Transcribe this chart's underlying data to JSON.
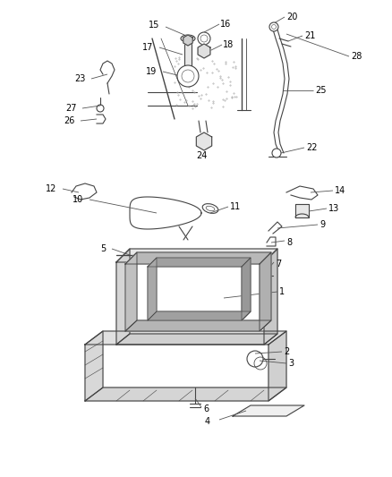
{
  "bg_color": "#ffffff",
  "line_color": "#444444",
  "label_color": "#000000",
  "figsize": [
    4.38,
    5.33
  ],
  "dpi": 100,
  "lw": 0.8,
  "fs": 7.0
}
